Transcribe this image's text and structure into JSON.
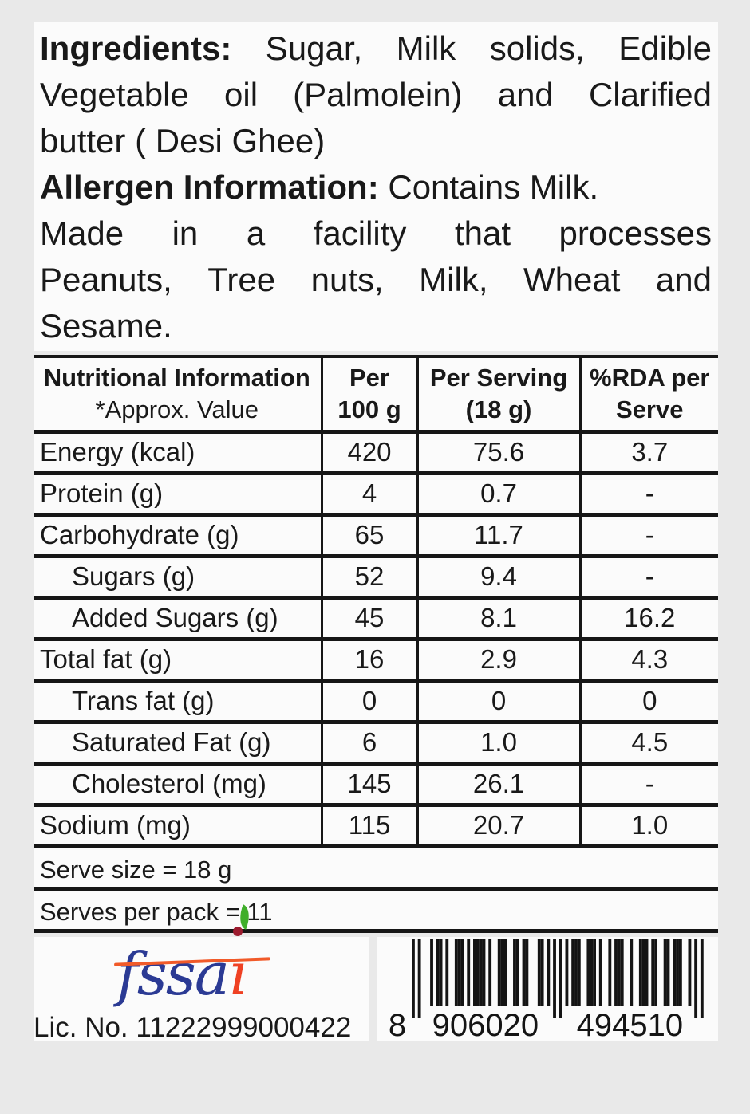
{
  "colors": {
    "background": "#e9e9e9",
    "panel": "#fbfbfb",
    "text": "#191919",
    "table_border": "#161616",
    "fssai_blue": "#2b3a94",
    "fssai_red": "#ef4123",
    "fssai_line_orange": "#f15a29",
    "fssai_leaf_green": "#3fae2a",
    "fssai_dot_maroon": "#9c1b2e"
  },
  "ingredients": {
    "lines": [
      "**Ingredients:** Sugar, Milk solids, Edible",
      "Vegetable oil (Palmolein) and Clarified",
      "butter ( Desi Ghee)",
      "**Allergen Information:** Contains Milk.",
      "Made in a facility that processes",
      "Peanuts, Tree nuts, Milk, Wheat and",
      "Sesame."
    ]
  },
  "table": {
    "header": {
      "nutrient_title": "Nutritional Information",
      "nutrient_subtitle": "*Approx. Value",
      "per100_line1": "Per",
      "per100_line2": "100 g",
      "serving_line1": "Per Serving",
      "serving_line2": "(18 g)",
      "rda_line1": "%RDA per",
      "rda_line2": "Serve"
    },
    "rows": [
      {
        "label": "Energy (kcal)",
        "indent": false,
        "per_100g": "420",
        "per_serving": "75.6",
        "rda_per_serve": "3.7"
      },
      {
        "label": "Protein (g)",
        "indent": false,
        "per_100g": "4",
        "per_serving": "0.7",
        "rda_per_serve": "-"
      },
      {
        "label": "Carbohydrate (g)",
        "indent": false,
        "per_100g": "65",
        "per_serving": "11.7",
        "rda_per_serve": "-"
      },
      {
        "label": "Sugars (g)",
        "indent": true,
        "per_100g": "52",
        "per_serving": "9.4",
        "rda_per_serve": "-"
      },
      {
        "label": "Added Sugars (g)",
        "indent": true,
        "per_100g": "45",
        "per_serving": "8.1",
        "rda_per_serve": "16.2"
      },
      {
        "label": "Total fat (g)",
        "indent": false,
        "per_100g": "16",
        "per_serving": "2.9",
        "rda_per_serve": "4.3"
      },
      {
        "label": "Trans fat (g)",
        "indent": true,
        "per_100g": "0",
        "per_serving": "0",
        "rda_per_serve": "0"
      },
      {
        "label": "Saturated Fat (g)",
        "indent": true,
        "per_100g": "6",
        "per_serving": "1.0",
        "rda_per_serve": "4.5"
      },
      {
        "label": "Cholesterol (mg)",
        "indent": true,
        "per_100g": "145",
        "per_serving": "26.1",
        "rda_per_serve": "-"
      },
      {
        "label": "Sodium (mg)",
        "indent": false,
        "per_100g": "115",
        "per_serving": "20.7",
        "rda_per_serve": "1.0"
      }
    ]
  },
  "serve_info": {
    "serve_size": "Serve size = 18 g",
    "serves_per_pack": "Serves per pack = 11"
  },
  "footer": {
    "fssai_blue_text": "fssa",
    "fssai_red_text": "ı",
    "license": "Lic. No. 11222999000422",
    "barcode": {
      "value": "8906020494510",
      "display_first": "8",
      "display_left": "906020",
      "display_right": "494510"
    }
  }
}
